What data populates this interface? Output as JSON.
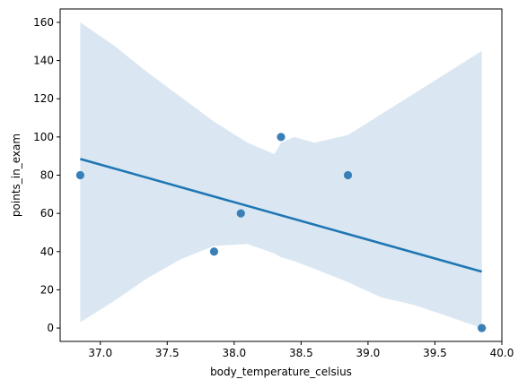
{
  "chart_data": {
    "type": "scatter",
    "title": "",
    "xlabel": "body_temperature_celsius",
    "ylabel": "points_in_exam",
    "xlim": [
      36.7,
      40.0
    ],
    "ylim": [
      -7,
      167
    ],
    "xticks": [
      37.0,
      37.5,
      38.0,
      38.5,
      39.0,
      39.5,
      40.0
    ],
    "xtick_labels": [
      "37.0",
      "37.5",
      "38.0",
      "38.5",
      "39.0",
      "39.5",
      "40.0"
    ],
    "yticks": [
      0,
      20,
      40,
      60,
      80,
      100,
      120,
      140,
      160
    ],
    "ytick_labels": [
      "0",
      "20",
      "40",
      "60",
      "80",
      "100",
      "120",
      "140",
      "160"
    ],
    "grid": false,
    "points": {
      "x": [
        36.85,
        37.85,
        38.05,
        38.35,
        38.85,
        39.85
      ],
      "y": [
        80,
        40,
        60,
        100,
        80,
        0
      ]
    },
    "regression_line": {
      "x": [
        36.85,
        39.85
      ],
      "y": [
        88.5,
        29.5
      ]
    },
    "confidence_band": {
      "x": [
        36.85,
        37.1,
        37.35,
        37.6,
        37.85,
        38.1,
        38.3,
        38.35,
        38.45,
        38.6,
        38.85,
        39.1,
        39.35,
        39.6,
        39.85
      ],
      "upper": [
        160,
        148,
        134,
        121,
        108,
        97,
        91,
        97,
        100,
        97,
        101,
        112,
        123,
        134,
        145
      ],
      "lower": [
        3,
        14,
        26,
        36,
        43,
        44,
        39,
        37,
        35,
        31,
        24,
        16,
        12,
        6,
        0
      ]
    },
    "colors": {
      "points": "#3a80b8",
      "line": "#1f77b4",
      "band": "#dae7f2",
      "axes": "#000000"
    }
  }
}
